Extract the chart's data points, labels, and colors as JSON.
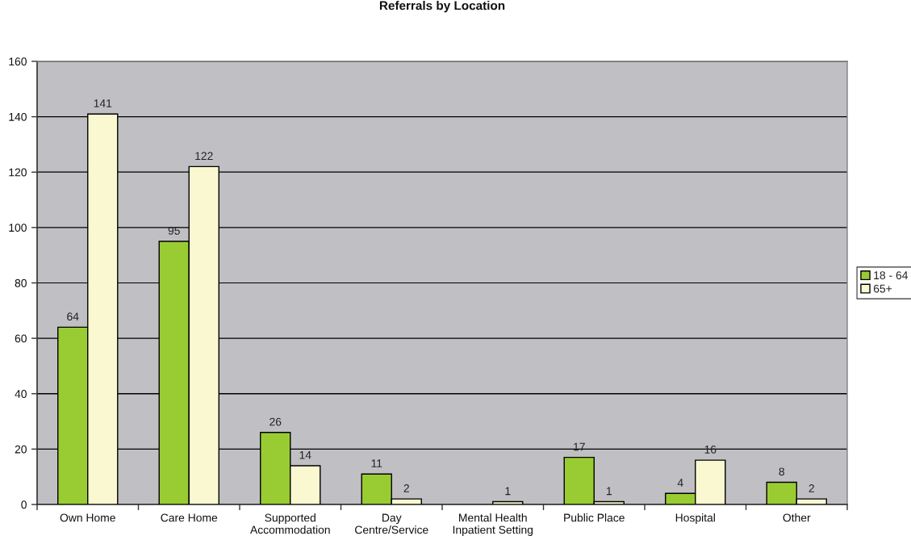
{
  "chart_data": {
    "type": "bar",
    "title": "Referrals by Location",
    "categories": [
      "Own Home",
      "Care Home",
      "Supported\nAccommodation",
      "Day\nCentre/Service",
      "Mental Health\nInpatient Setting",
      "Public Place",
      "Hospital",
      "Other"
    ],
    "series": [
      {
        "name": "18 - 64",
        "color": "#99cc33",
        "values": [
          64,
          95,
          26,
          11,
          null,
          17,
          4,
          8
        ]
      },
      {
        "name": "65+",
        "color": "#faf8d0",
        "values": [
          141,
          122,
          14,
          2,
          1,
          1,
          16,
          2
        ]
      }
    ],
    "ylim": [
      0,
      160
    ],
    "yticks": [
      0,
      20,
      40,
      60,
      80,
      100,
      120,
      140,
      160
    ],
    "grid": "y",
    "legend": "right",
    "data_labels": true
  }
}
